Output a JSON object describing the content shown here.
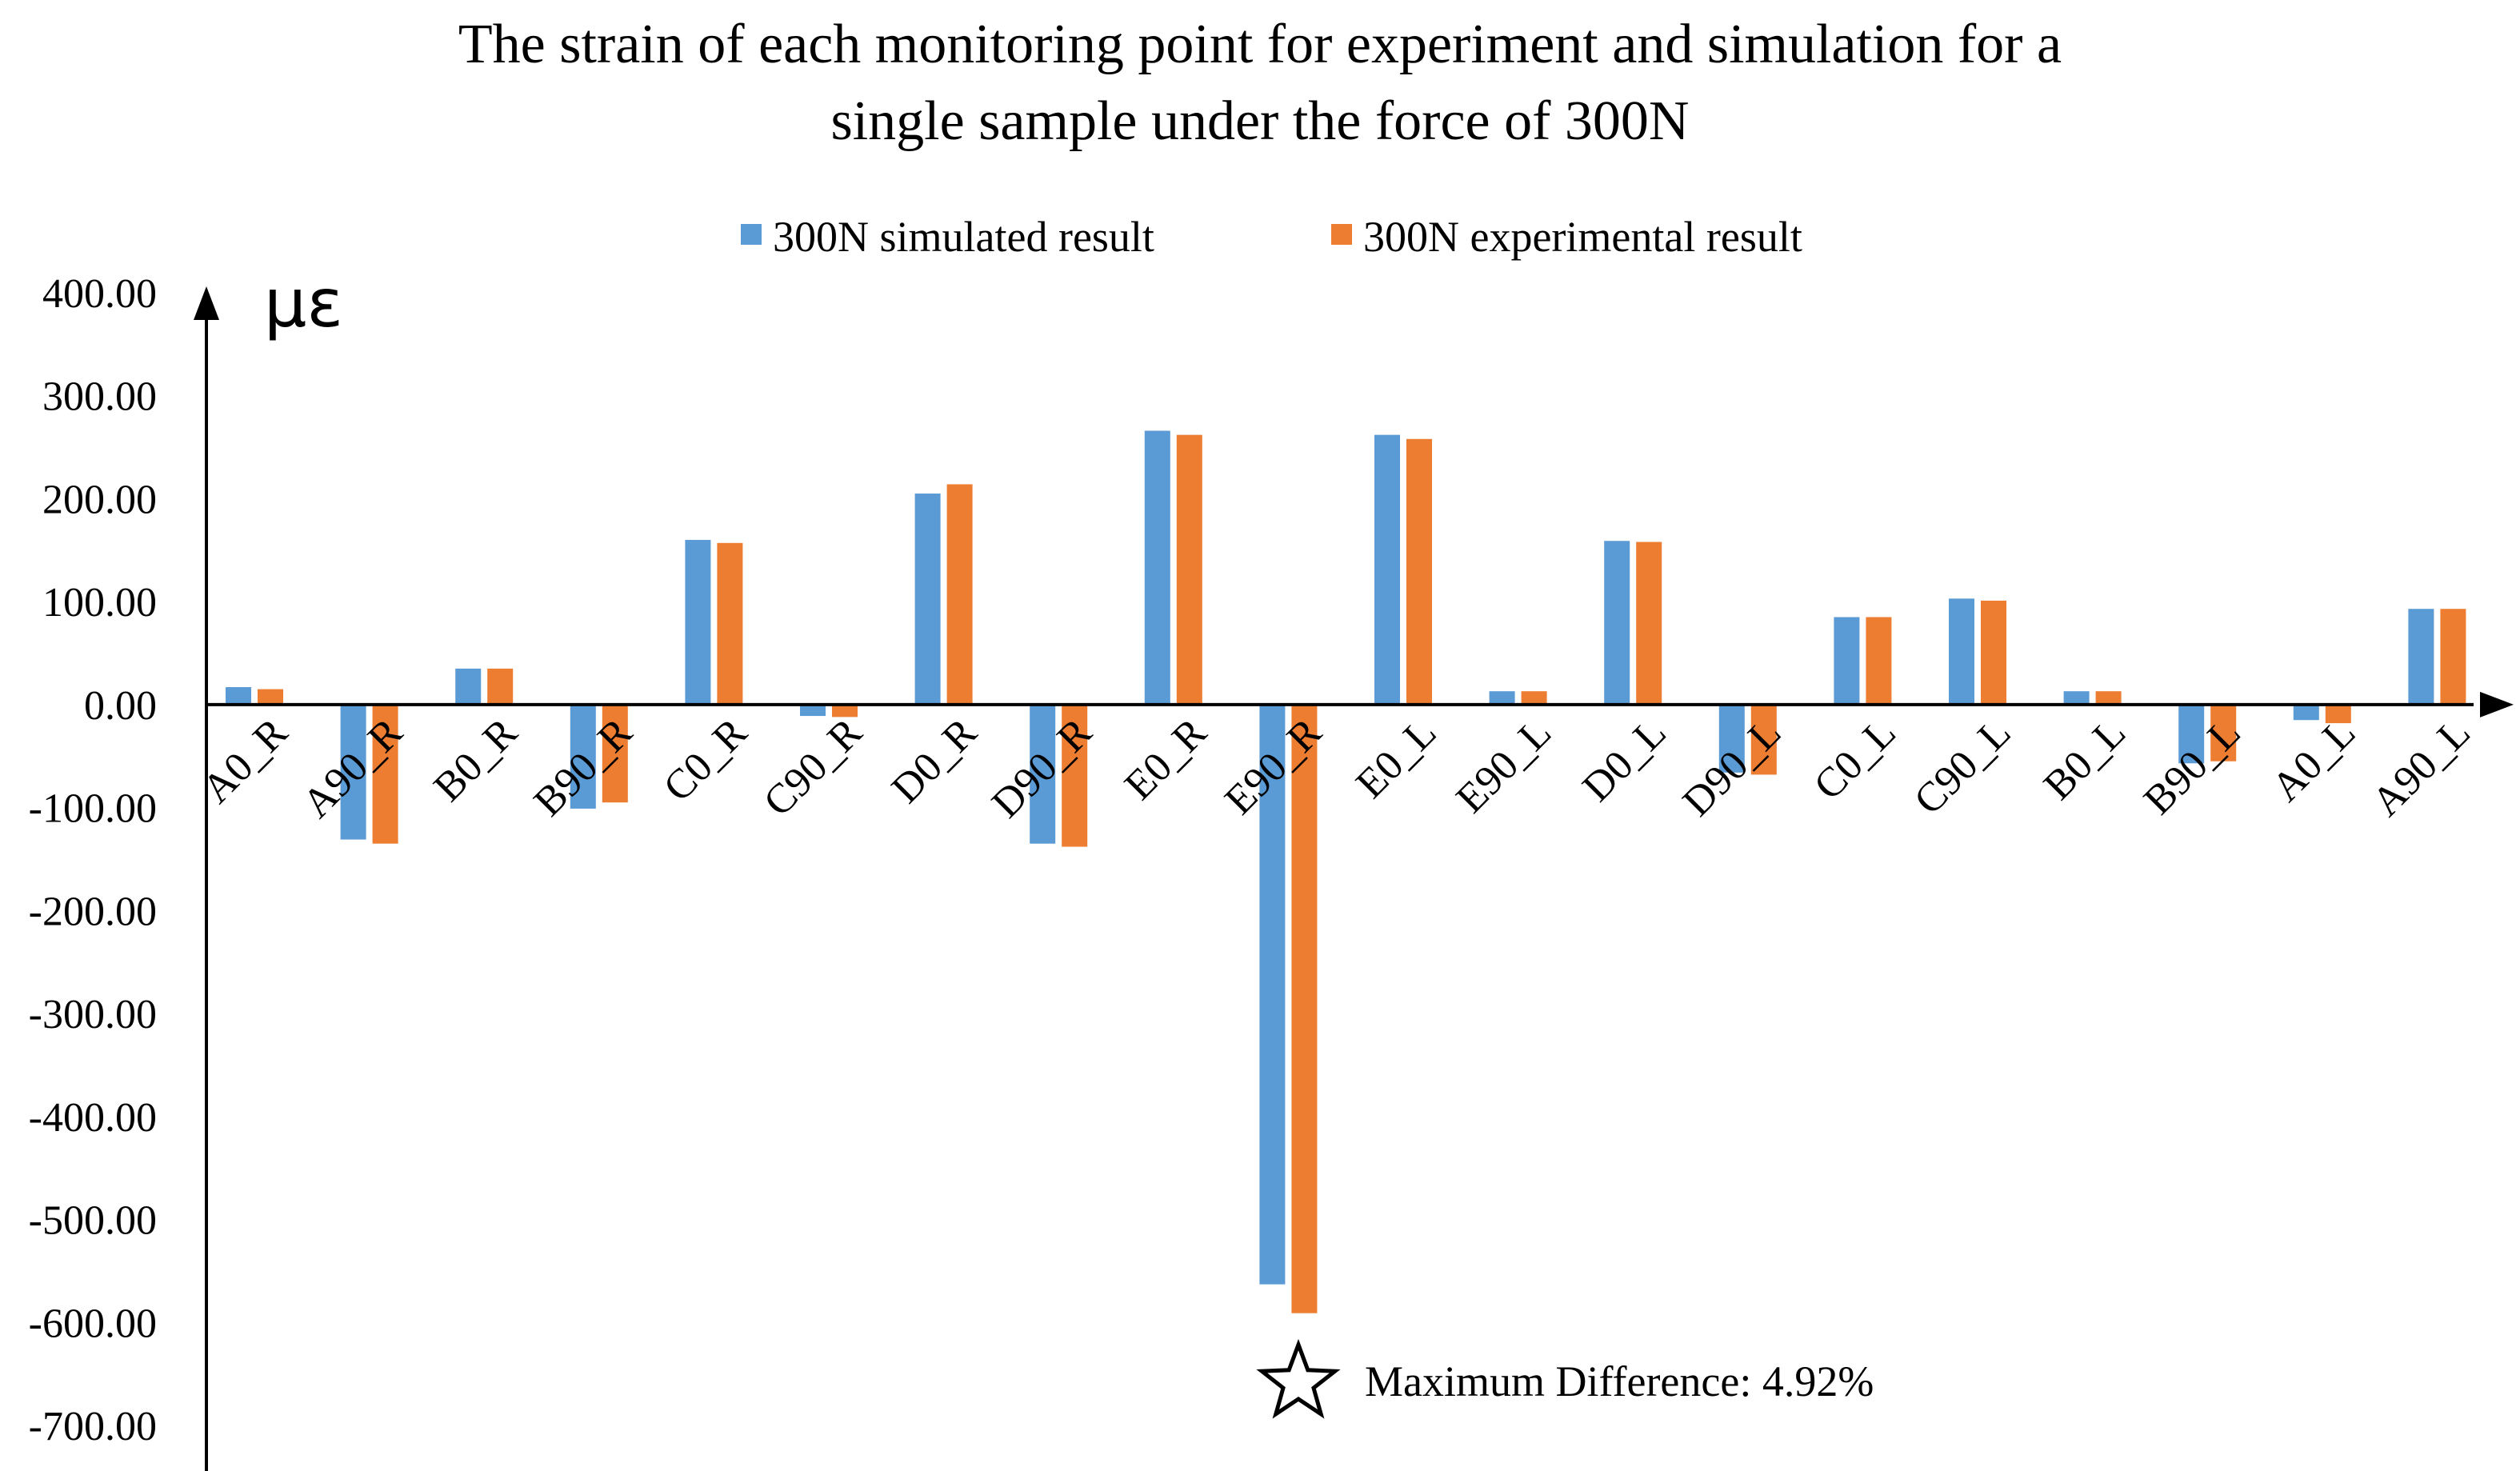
{
  "chart_data": {
    "type": "bar",
    "title": "The strain of each monitoring point for experiment and simulation for a single sample under the force of 300N",
    "title_lines": [
      "The strain of each monitoring point for experiment and simulation for a",
      "single sample under the force of 300N"
    ],
    "ylabel": "με",
    "xlabel": "",
    "ylim": [
      -700,
      400
    ],
    "yticks": [
      "400.00",
      "300.00",
      "200.00",
      "100.00",
      "0.00",
      "-100.00",
      "-200.00",
      "-300.00",
      "-400.00",
      "-500.00",
      "-600.00",
      "-700.00"
    ],
    "ytick_values": [
      400,
      300,
      200,
      100,
      0,
      -100,
      -200,
      -300,
      -400,
      -500,
      -600,
      -700
    ],
    "grid": false,
    "legend_position": "top-center",
    "categories": [
      "A0_R",
      "A90_R",
      "B0_R",
      "B90_R",
      "C0_R",
      "C90_R",
      "D0_R",
      "D90_R",
      "E0_R",
      "E90_R",
      "E0_L",
      "E90_L",
      "D0_L",
      "D90_L",
      "C0_L",
      "C90_L",
      "B0_L",
      "B90_L",
      "A0_L",
      "A90_L"
    ],
    "series": [
      {
        "name": "300N simulated result",
        "color": "#5B9BD5",
        "values": [
          17,
          -131,
          35,
          -101,
          160,
          -11,
          205,
          -135,
          266,
          -563,
          262,
          13,
          159,
          -66,
          85,
          103,
          13,
          -57,
          -15,
          93
        ]
      },
      {
        "name": "300N experimental result",
        "color": "#ED7D31",
        "values": [
          15,
          -135,
          35,
          -95,
          157,
          -12,
          214,
          -138,
          262,
          -591,
          258,
          13,
          158,
          -68,
          85,
          101,
          13,
          -55,
          -18,
          93
        ]
      }
    ],
    "annotation": {
      "text": "Maximum Difference: 4.92%",
      "icon": "star-outline-icon",
      "category": "E90_R"
    }
  }
}
